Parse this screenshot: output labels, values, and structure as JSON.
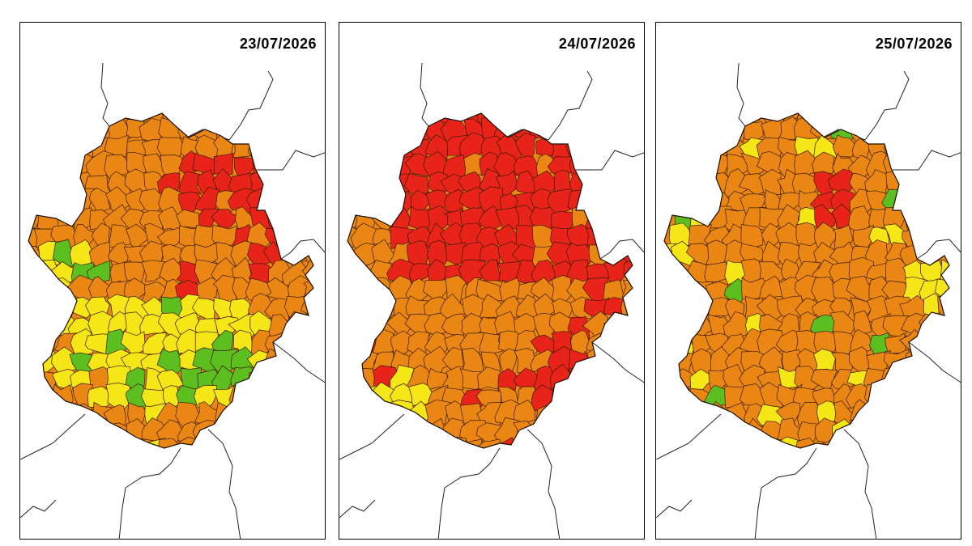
{
  "panels": [
    {
      "date": "23/07/2026",
      "scenario": "mixed"
    },
    {
      "date": "24/07/2026",
      "scenario": "severe"
    },
    {
      "date": "25/07/2026",
      "scenario": "moderate"
    }
  ],
  "legend_colors": {
    "green": "#5cbf1f",
    "yellow": "#f5e617",
    "orange": "#ea8614",
    "red": "#e8231a"
  }
}
